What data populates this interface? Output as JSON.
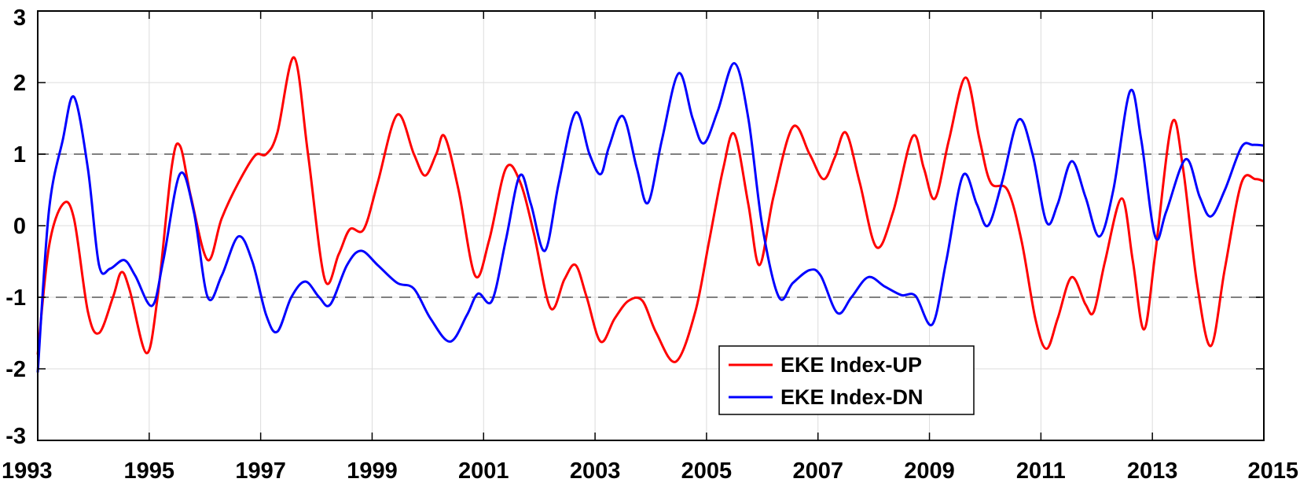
{
  "chart_data": {
    "type": "line",
    "xlim": [
      1993,
      2015
    ],
    "ylim": [
      -3,
      3
    ],
    "x_ticks": [
      "1993",
      "1995",
      "1997",
      "1999",
      "2001",
      "2003",
      "2005",
      "2007",
      "2009",
      "2011",
      "2013",
      "2015"
    ],
    "y_ticks": [
      "3",
      "2",
      "1",
      "0",
      "-1",
      "-2",
      "-3"
    ],
    "grid": true,
    "reference_lines": [
      1,
      -1
    ],
    "legend": {
      "placement": "lower-center"
    },
    "series": [
      {
        "name": "EKE Index-UP",
        "color": "#ff0000",
        "points": [
          [
            1993.0,
            -1.8
          ],
          [
            1993.2,
            -0.3
          ],
          [
            1993.45,
            0.3
          ],
          [
            1993.65,
            0.1
          ],
          [
            1993.9,
            -1.2
          ],
          [
            1994.1,
            -1.5
          ],
          [
            1994.35,
            -1.0
          ],
          [
            1994.5,
            -0.65
          ],
          [
            1994.65,
            -0.9
          ],
          [
            1994.95,
            -1.78
          ],
          [
            1995.15,
            -1.0
          ],
          [
            1995.4,
            0.8
          ],
          [
            1995.55,
            1.12
          ],
          [
            1995.75,
            0.4
          ],
          [
            1996.05,
            -0.48
          ],
          [
            1996.3,
            0.1
          ],
          [
            1996.6,
            0.6
          ],
          [
            1996.9,
            0.98
          ],
          [
            1997.1,
            1.0
          ],
          [
            1997.3,
            1.3
          ],
          [
            1997.6,
            2.35
          ],
          [
            1997.85,
            1.0
          ],
          [
            1998.15,
            -0.75
          ],
          [
            1998.4,
            -0.4
          ],
          [
            1998.6,
            -0.05
          ],
          [
            1998.85,
            -0.05
          ],
          [
            1999.1,
            0.6
          ],
          [
            1999.45,
            1.55
          ],
          [
            1999.75,
            1.0
          ],
          [
            1999.95,
            0.7
          ],
          [
            2000.15,
            1.0
          ],
          [
            2000.3,
            1.25
          ],
          [
            2000.55,
            0.5
          ],
          [
            2000.85,
            -0.7
          ],
          [
            2001.1,
            -0.2
          ],
          [
            2001.4,
            0.8
          ],
          [
            2001.65,
            0.62
          ],
          [
            2001.9,
            -0.1
          ],
          [
            2002.2,
            -1.15
          ],
          [
            2002.45,
            -0.75
          ],
          [
            2002.65,
            -0.55
          ],
          [
            2002.85,
            -1.0
          ],
          [
            2003.1,
            -1.62
          ],
          [
            2003.35,
            -1.3
          ],
          [
            2003.6,
            -1.05
          ],
          [
            2003.85,
            -1.05
          ],
          [
            2004.1,
            -1.5
          ],
          [
            2004.45,
            -1.9
          ],
          [
            2004.8,
            -1.2
          ],
          [
            2005.05,
            -0.2
          ],
          [
            2005.3,
            0.8
          ],
          [
            2005.5,
            1.28
          ],
          [
            2005.75,
            0.3
          ],
          [
            2005.95,
            -0.55
          ],
          [
            2006.2,
            0.4
          ],
          [
            2006.55,
            1.38
          ],
          [
            2006.85,
            1.0
          ],
          [
            2007.1,
            0.65
          ],
          [
            2007.3,
            0.95
          ],
          [
            2007.5,
            1.3
          ],
          [
            2007.75,
            0.6
          ],
          [
            2008.05,
            -0.3
          ],
          [
            2008.35,
            0.2
          ],
          [
            2008.7,
            1.25
          ],
          [
            2008.9,
            0.8
          ],
          [
            2009.1,
            0.38
          ],
          [
            2009.35,
            1.2
          ],
          [
            2009.65,
            2.07
          ],
          [
            2009.9,
            1.2
          ],
          [
            2010.1,
            0.6
          ],
          [
            2010.4,
            0.5
          ],
          [
            2010.65,
            -0.2
          ],
          [
            2010.9,
            -1.3
          ],
          [
            2011.1,
            -1.72
          ],
          [
            2011.3,
            -1.3
          ],
          [
            2011.55,
            -0.72
          ],
          [
            2011.8,
            -1.1
          ],
          [
            2011.95,
            -1.2
          ],
          [
            2012.15,
            -0.5
          ],
          [
            2012.45,
            0.38
          ],
          [
            2012.65,
            -0.5
          ],
          [
            2012.85,
            -1.45
          ],
          [
            2013.05,
            -0.4
          ],
          [
            2013.35,
            1.43
          ],
          [
            2013.55,
            0.8
          ],
          [
            2013.8,
            -0.8
          ],
          [
            2014.05,
            -1.68
          ],
          [
            2014.3,
            -0.6
          ],
          [
            2014.6,
            0.6
          ],
          [
            2014.85,
            0.65
          ],
          [
            2015.0,
            0.62
          ]
        ]
      },
      {
        "name": "EKE Index-DN",
        "color": "#0000ff",
        "points": [
          [
            1993.0,
            -2.05
          ],
          [
            1993.2,
            0.2
          ],
          [
            1993.45,
            1.2
          ],
          [
            1993.65,
            1.8
          ],
          [
            1993.9,
            0.8
          ],
          [
            1994.1,
            -0.55
          ],
          [
            1994.3,
            -0.6
          ],
          [
            1994.55,
            -0.48
          ],
          [
            1994.75,
            -0.7
          ],
          [
            1995.05,
            -1.12
          ],
          [
            1995.25,
            -0.5
          ],
          [
            1995.55,
            0.72
          ],
          [
            1995.8,
            0.2
          ],
          [
            1996.05,
            -1.0
          ],
          [
            1996.3,
            -0.7
          ],
          [
            1996.6,
            -0.15
          ],
          [
            1996.85,
            -0.5
          ],
          [
            1997.1,
            -1.25
          ],
          [
            1997.3,
            -1.48
          ],
          [
            1997.55,
            -1.0
          ],
          [
            1997.8,
            -0.78
          ],
          [
            1998.05,
            -1.0
          ],
          [
            1998.25,
            -1.1
          ],
          [
            1998.55,
            -0.55
          ],
          [
            1998.8,
            -0.35
          ],
          [
            1999.1,
            -0.55
          ],
          [
            1999.45,
            -0.8
          ],
          [
            1999.75,
            -0.88
          ],
          [
            2000.05,
            -1.3
          ],
          [
            2000.4,
            -1.62
          ],
          [
            2000.7,
            -1.25
          ],
          [
            2000.9,
            -0.95
          ],
          [
            2001.15,
            -1.05
          ],
          [
            2001.4,
            -0.2
          ],
          [
            2001.65,
            0.7
          ],
          [
            2001.85,
            0.3
          ],
          [
            2002.1,
            -0.35
          ],
          [
            2002.35,
            0.6
          ],
          [
            2002.65,
            1.58
          ],
          [
            2002.9,
            1.0
          ],
          [
            2003.1,
            0.72
          ],
          [
            2003.25,
            1.1
          ],
          [
            2003.5,
            1.53
          ],
          [
            2003.75,
            0.8
          ],
          [
            2003.95,
            0.32
          ],
          [
            2004.2,
            1.2
          ],
          [
            2004.5,
            2.13
          ],
          [
            2004.75,
            1.5
          ],
          [
            2004.95,
            1.15
          ],
          [
            2005.2,
            1.6
          ],
          [
            2005.5,
            2.27
          ],
          [
            2005.75,
            1.5
          ],
          [
            2006.0,
            0.0
          ],
          [
            2006.3,
            -1.0
          ],
          [
            2006.55,
            -0.8
          ],
          [
            2006.85,
            -0.62
          ],
          [
            2007.05,
            -0.7
          ],
          [
            2007.35,
            -1.22
          ],
          [
            2007.6,
            -1.0
          ],
          [
            2007.9,
            -0.72
          ],
          [
            2008.2,
            -0.85
          ],
          [
            2008.5,
            -0.97
          ],
          [
            2008.75,
            -0.98
          ],
          [
            2009.05,
            -1.38
          ],
          [
            2009.3,
            -0.5
          ],
          [
            2009.6,
            0.7
          ],
          [
            2009.85,
            0.3
          ],
          [
            2010.05,
            0.0
          ],
          [
            2010.3,
            0.6
          ],
          [
            2010.6,
            1.48
          ],
          [
            2010.85,
            1.0
          ],
          [
            2011.1,
            0.05
          ],
          [
            2011.3,
            0.3
          ],
          [
            2011.55,
            0.9
          ],
          [
            2011.8,
            0.4
          ],
          [
            2012.05,
            -0.15
          ],
          [
            2012.3,
            0.5
          ],
          [
            2012.6,
            1.88
          ],
          [
            2012.8,
            1.2
          ],
          [
            2013.05,
            -0.15
          ],
          [
            2013.25,
            0.2
          ],
          [
            2013.6,
            0.93
          ],
          [
            2013.85,
            0.4
          ],
          [
            2014.05,
            0.13
          ],
          [
            2014.3,
            0.5
          ],
          [
            2014.6,
            1.1
          ],
          [
            2014.8,
            1.13
          ],
          [
            2015.0,
            1.12
          ]
        ]
      }
    ]
  }
}
